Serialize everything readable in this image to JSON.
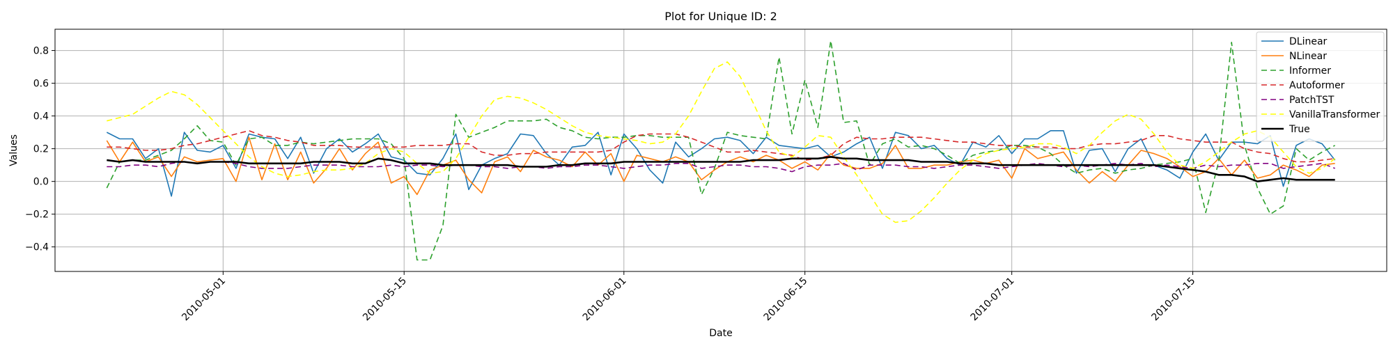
{
  "chart_data": {
    "type": "line",
    "title": "Plot for Unique ID: 2",
    "xlabel": "Date",
    "ylabel": "Values",
    "x_type": "date",
    "xlim": [
      "2010-04-18",
      "2010-07-30"
    ],
    "ylim": [
      -0.55,
      0.93
    ],
    "grid": true,
    "legend_position": "top-right",
    "x_ticks": [
      {
        "date": "2010-05-01",
        "label": "2010-05-01"
      },
      {
        "date": "2010-05-15",
        "label": "2010-05-15"
      },
      {
        "date": "2010-06-01",
        "label": "2010-06-01"
      },
      {
        "date": "2010-06-15",
        "label": "2010-06-15"
      },
      {
        "date": "2010-07-01",
        "label": "2010-07-01"
      },
      {
        "date": "2010-07-15",
        "label": "2010-07-15"
      }
    ],
    "y_ticks": [
      {
        "value": -0.4,
        "label": "−0.4"
      },
      {
        "value": -0.2,
        "label": "−0.2"
      },
      {
        "value": 0.0,
        "label": "0.0"
      },
      {
        "value": 0.2,
        "label": "0.2"
      },
      {
        "value": 0.4,
        "label": "0.4"
      },
      {
        "value": 0.6,
        "label": "0.6"
      },
      {
        "value": 0.8,
        "label": "0.8"
      }
    ],
    "dates": [
      "2010-04-22",
      "2010-04-23",
      "2010-04-24",
      "2010-04-25",
      "2010-04-26",
      "2010-04-27",
      "2010-04-28",
      "2010-04-29",
      "2010-04-30",
      "2010-05-01",
      "2010-05-02",
      "2010-05-03",
      "2010-05-04",
      "2010-05-05",
      "2010-05-06",
      "2010-05-07",
      "2010-05-08",
      "2010-05-09",
      "2010-05-10",
      "2010-05-11",
      "2010-05-12",
      "2010-05-13",
      "2010-05-14",
      "2010-05-15",
      "2010-05-16",
      "2010-05-17",
      "2010-05-18",
      "2010-05-19",
      "2010-05-20",
      "2010-05-21",
      "2010-05-22",
      "2010-05-23",
      "2010-05-24",
      "2010-05-25",
      "2010-05-26",
      "2010-05-27",
      "2010-05-28",
      "2010-05-29",
      "2010-05-30",
      "2010-05-31",
      "2010-06-01",
      "2010-06-02",
      "2010-06-03",
      "2010-06-04",
      "2010-06-05",
      "2010-06-06",
      "2010-06-07",
      "2010-06-08",
      "2010-06-09",
      "2010-06-10",
      "2010-06-11",
      "2010-06-12",
      "2010-06-13",
      "2010-06-14",
      "2010-06-15",
      "2010-06-16",
      "2010-06-17",
      "2010-06-18",
      "2010-06-19",
      "2010-06-20",
      "2010-06-21",
      "2010-06-22",
      "2010-06-23",
      "2010-06-24",
      "2010-06-25",
      "2010-06-26",
      "2010-06-27",
      "2010-06-28",
      "2010-06-29",
      "2010-06-30",
      "2010-07-01",
      "2010-07-02",
      "2010-07-03",
      "2010-07-04",
      "2010-07-05",
      "2010-07-06",
      "2010-07-07",
      "2010-07-08",
      "2010-07-09",
      "2010-07-10",
      "2010-07-11",
      "2010-07-12",
      "2010-07-13",
      "2010-07-14",
      "2010-07-15",
      "2010-07-16",
      "2010-07-17",
      "2010-07-18",
      "2010-07-19",
      "2010-07-20",
      "2010-07-21",
      "2010-07-22",
      "2010-07-23",
      "2010-07-24",
      "2010-07-25",
      "2010-07-26"
    ],
    "series": [
      {
        "name": "DLinear",
        "color": "#1f77b4",
        "dash": "solid",
        "width": 1.6,
        "values": [
          0.3,
          0.26,
          0.26,
          0.14,
          0.2,
          -0.09,
          0.3,
          0.19,
          0.18,
          0.22,
          0.08,
          0.29,
          0.27,
          0.26,
          0.14,
          0.27,
          0.05,
          0.2,
          0.26,
          0.18,
          0.23,
          0.29,
          0.15,
          0.13,
          0.05,
          0.04,
          0.14,
          0.29,
          -0.05,
          0.1,
          0.14,
          0.17,
          0.29,
          0.28,
          0.17,
          0.1,
          0.21,
          0.22,
          0.3,
          0.04,
          0.29,
          0.2,
          0.07,
          -0.01,
          0.24,
          0.15,
          0.2,
          0.26,
          0.27,
          0.25,
          0.17,
          0.27,
          0.22,
          0.21,
          0.2,
          0.22,
          0.15,
          0.18,
          0.23,
          0.27,
          0.08,
          0.3,
          0.28,
          0.2,
          0.22,
          0.14,
          0.1,
          0.24,
          0.21,
          0.28,
          0.17,
          0.26,
          0.26,
          0.31,
          0.31,
          0.05,
          0.19,
          0.2,
          0.06,
          0.2,
          0.26,
          0.1,
          0.07,
          0.02,
          0.18,
          0.29,
          0.13,
          0.24,
          0.24,
          0.23,
          0.28,
          -0.03,
          0.22,
          0.26,
          0.23,
          0.13
        ]
      },
      {
        "name": "NLinear",
        "color": "#ff7f0e",
        "dash": "solid",
        "width": 1.6,
        "values": [
          0.25,
          0.12,
          0.24,
          0.12,
          0.15,
          0.03,
          0.15,
          0.12,
          0.13,
          0.14,
          0.0,
          0.27,
          0.01,
          0.23,
          0.01,
          0.18,
          -0.01,
          0.08,
          0.2,
          0.07,
          0.17,
          0.24,
          -0.01,
          0.03,
          -0.08,
          0.07,
          0.1,
          0.13,
          0.01,
          -0.07,
          0.12,
          0.15,
          0.06,
          0.19,
          0.15,
          0.13,
          0.09,
          0.18,
          0.1,
          0.17,
          0.0,
          0.16,
          0.14,
          0.12,
          0.15,
          0.12,
          0.01,
          0.07,
          0.12,
          0.15,
          0.12,
          0.16,
          0.13,
          0.08,
          0.12,
          0.07,
          0.17,
          0.1,
          0.08,
          0.08,
          0.11,
          0.22,
          0.08,
          0.08,
          0.1,
          0.1,
          0.12,
          0.13,
          0.11,
          0.13,
          0.02,
          0.2,
          0.14,
          0.16,
          0.18,
          0.07,
          -0.01,
          0.06,
          0.0,
          0.1,
          0.19,
          0.17,
          0.14,
          0.09,
          0.03,
          0.06,
          0.14,
          0.04,
          0.13,
          0.02,
          0.04,
          0.1,
          0.07,
          0.03,
          0.1,
          0.11
        ]
      },
      {
        "name": "Informer",
        "color": "#2ca02c",
        "dash": "8,5",
        "width": 1.6,
        "values": [
          -0.04,
          0.12,
          0.13,
          0.13,
          0.16,
          0.19,
          0.26,
          0.34,
          0.25,
          0.24,
          0.1,
          0.26,
          0.27,
          0.22,
          0.22,
          0.24,
          0.23,
          0.24,
          0.25,
          0.26,
          0.26,
          0.26,
          0.23,
          0.14,
          -0.48,
          -0.48,
          -0.27,
          0.41,
          0.27,
          0.3,
          0.33,
          0.37,
          0.37,
          0.37,
          0.38,
          0.33,
          0.31,
          0.27,
          0.26,
          0.27,
          0.27,
          0.28,
          0.28,
          0.27,
          0.27,
          0.27,
          -0.08,
          0.08,
          0.3,
          0.28,
          0.27,
          0.26,
          0.76,
          0.29,
          0.62,
          0.33,
          0.86,
          0.36,
          0.37,
          0.1,
          0.23,
          0.26,
          0.21,
          0.22,
          0.2,
          0.16,
          0.11,
          0.16,
          0.18,
          0.19,
          0.22,
          0.22,
          0.21,
          0.17,
          0.1,
          0.05,
          0.07,
          0.08,
          0.05,
          0.07,
          0.08,
          0.1,
          0.11,
          0.12,
          0.14,
          -0.19,
          0.12,
          0.85,
          0.22,
          -0.04,
          -0.2,
          -0.15,
          0.2,
          0.13,
          0.18,
          0.22
        ]
      },
      {
        "name": "Autoformer",
        "color": "#d62728",
        "dash": "8,5",
        "width": 1.6,
        "values": [
          0.21,
          0.21,
          0.2,
          0.19,
          0.19,
          0.2,
          0.22,
          0.23,
          0.25,
          0.27,
          0.29,
          0.31,
          0.28,
          0.27,
          0.25,
          0.24,
          0.22,
          0.22,
          0.22,
          0.21,
          0.21,
          0.21,
          0.21,
          0.21,
          0.22,
          0.22,
          0.22,
          0.23,
          0.23,
          0.18,
          0.16,
          0.16,
          0.17,
          0.17,
          0.18,
          0.18,
          0.18,
          0.18,
          0.18,
          0.19,
          0.24,
          0.28,
          0.29,
          0.29,
          0.29,
          0.27,
          0.24,
          0.21,
          0.18,
          0.18,
          0.19,
          0.18,
          0.17,
          0.16,
          0.13,
          0.14,
          0.16,
          0.23,
          0.27,
          0.26,
          0.26,
          0.27,
          0.27,
          0.27,
          0.26,
          0.25,
          0.24,
          0.24,
          0.23,
          0.22,
          0.22,
          0.21,
          0.21,
          0.21,
          0.2,
          0.2,
          0.22,
          0.23,
          0.23,
          0.24,
          0.25,
          0.28,
          0.28,
          0.26,
          0.25,
          0.24,
          0.24,
          0.24,
          0.2,
          0.18,
          0.17,
          0.14,
          0.12,
          0.12,
          0.13,
          0.14
        ]
      },
      {
        "name": "PatchTST",
        "color": "#800080",
        "dash": "8,5",
        "width": 1.6,
        "values": [
          0.09,
          0.09,
          0.1,
          0.1,
          0.09,
          0.11,
          0.12,
          0.11,
          0.12,
          0.12,
          0.11,
          0.09,
          0.08,
          0.08,
          0.08,
          0.09,
          0.1,
          0.1,
          0.1,
          0.09,
          0.09,
          0.09,
          0.1,
          0.09,
          0.1,
          0.1,
          0.09,
          0.1,
          0.1,
          0.09,
          0.09,
          0.08,
          0.09,
          0.09,
          0.08,
          0.09,
          0.09,
          0.1,
          0.1,
          0.09,
          0.08,
          0.09,
          0.1,
          0.1,
          0.11,
          0.11,
          0.08,
          0.09,
          0.1,
          0.1,
          0.09,
          0.09,
          0.08,
          0.06,
          0.09,
          0.1,
          0.1,
          0.11,
          0.07,
          0.1,
          0.1,
          0.1,
          0.09,
          0.09,
          0.08,
          0.09,
          0.1,
          0.1,
          0.09,
          0.08,
          0.09,
          0.1,
          0.11,
          0.1,
          0.09,
          0.1,
          0.09,
          0.1,
          0.11,
          0.1,
          0.11,
          0.09,
          0.1,
          0.09,
          0.08,
          0.1,
          0.09,
          0.1,
          0.1,
          0.11,
          0.11,
          0.08,
          0.09,
          0.1,
          0.11,
          0.08
        ]
      },
      {
        "name": "VanillaTransformer",
        "color": "#ffff00",
        "dash": "8,5",
        "width": 1.6,
        "values": [
          0.37,
          0.39,
          0.41,
          0.46,
          0.51,
          0.55,
          0.53,
          0.47,
          0.39,
          0.31,
          0.23,
          0.15,
          0.09,
          0.05,
          0.03,
          0.04,
          0.06,
          0.07,
          0.07,
          0.08,
          0.11,
          0.17,
          0.2,
          0.18,
          0.11,
          0.05,
          0.06,
          0.14,
          0.27,
          0.4,
          0.5,
          0.52,
          0.51,
          0.48,
          0.44,
          0.39,
          0.34,
          0.3,
          0.28,
          0.27,
          0.26,
          0.25,
          0.23,
          0.24,
          0.29,
          0.4,
          0.55,
          0.69,
          0.73,
          0.64,
          0.48,
          0.31,
          0.18,
          0.15,
          0.21,
          0.28,
          0.27,
          0.15,
          0.04,
          -0.08,
          -0.2,
          -0.25,
          -0.24,
          -0.18,
          -0.1,
          -0.01,
          0.07,
          0.13,
          0.17,
          0.19,
          0.2,
          0.21,
          0.23,
          0.23,
          0.21,
          0.17,
          0.22,
          0.3,
          0.37,
          0.41,
          0.38,
          0.29,
          0.18,
          0.1,
          0.08,
          0.12,
          0.18,
          0.24,
          0.29,
          0.31,
          0.27,
          0.18,
          0.09,
          0.05,
          0.08,
          0.14
        ]
      },
      {
        "name": "True",
        "color": "#000000",
        "dash": "solid",
        "width": 2.6,
        "values": [
          0.13,
          0.12,
          0.13,
          0.12,
          0.12,
          0.12,
          0.12,
          0.11,
          0.12,
          0.12,
          0.12,
          0.11,
          0.11,
          0.11,
          0.11,
          0.11,
          0.12,
          0.12,
          0.12,
          0.11,
          0.11,
          0.14,
          0.13,
          0.11,
          0.11,
          0.11,
          0.1,
          0.1,
          0.1,
          0.1,
          0.1,
          0.1,
          0.09,
          0.09,
          0.09,
          0.1,
          0.1,
          0.11,
          0.11,
          0.11,
          0.12,
          0.12,
          0.12,
          0.12,
          0.12,
          0.12,
          0.12,
          0.12,
          0.12,
          0.12,
          0.13,
          0.13,
          0.13,
          0.14,
          0.14,
          0.14,
          0.15,
          0.14,
          0.14,
          0.13,
          0.13,
          0.13,
          0.13,
          0.12,
          0.12,
          0.12,
          0.11,
          0.11,
          0.11,
          0.1,
          0.1,
          0.1,
          0.1,
          0.1,
          0.1,
          0.1,
          0.1,
          0.1,
          0.1,
          0.1,
          0.1,
          0.1,
          0.09,
          0.08,
          0.07,
          0.06,
          0.04,
          0.04,
          0.03,
          0.0,
          0.01,
          0.02,
          0.01,
          0.01,
          0.01,
          0.01
        ]
      }
    ]
  }
}
